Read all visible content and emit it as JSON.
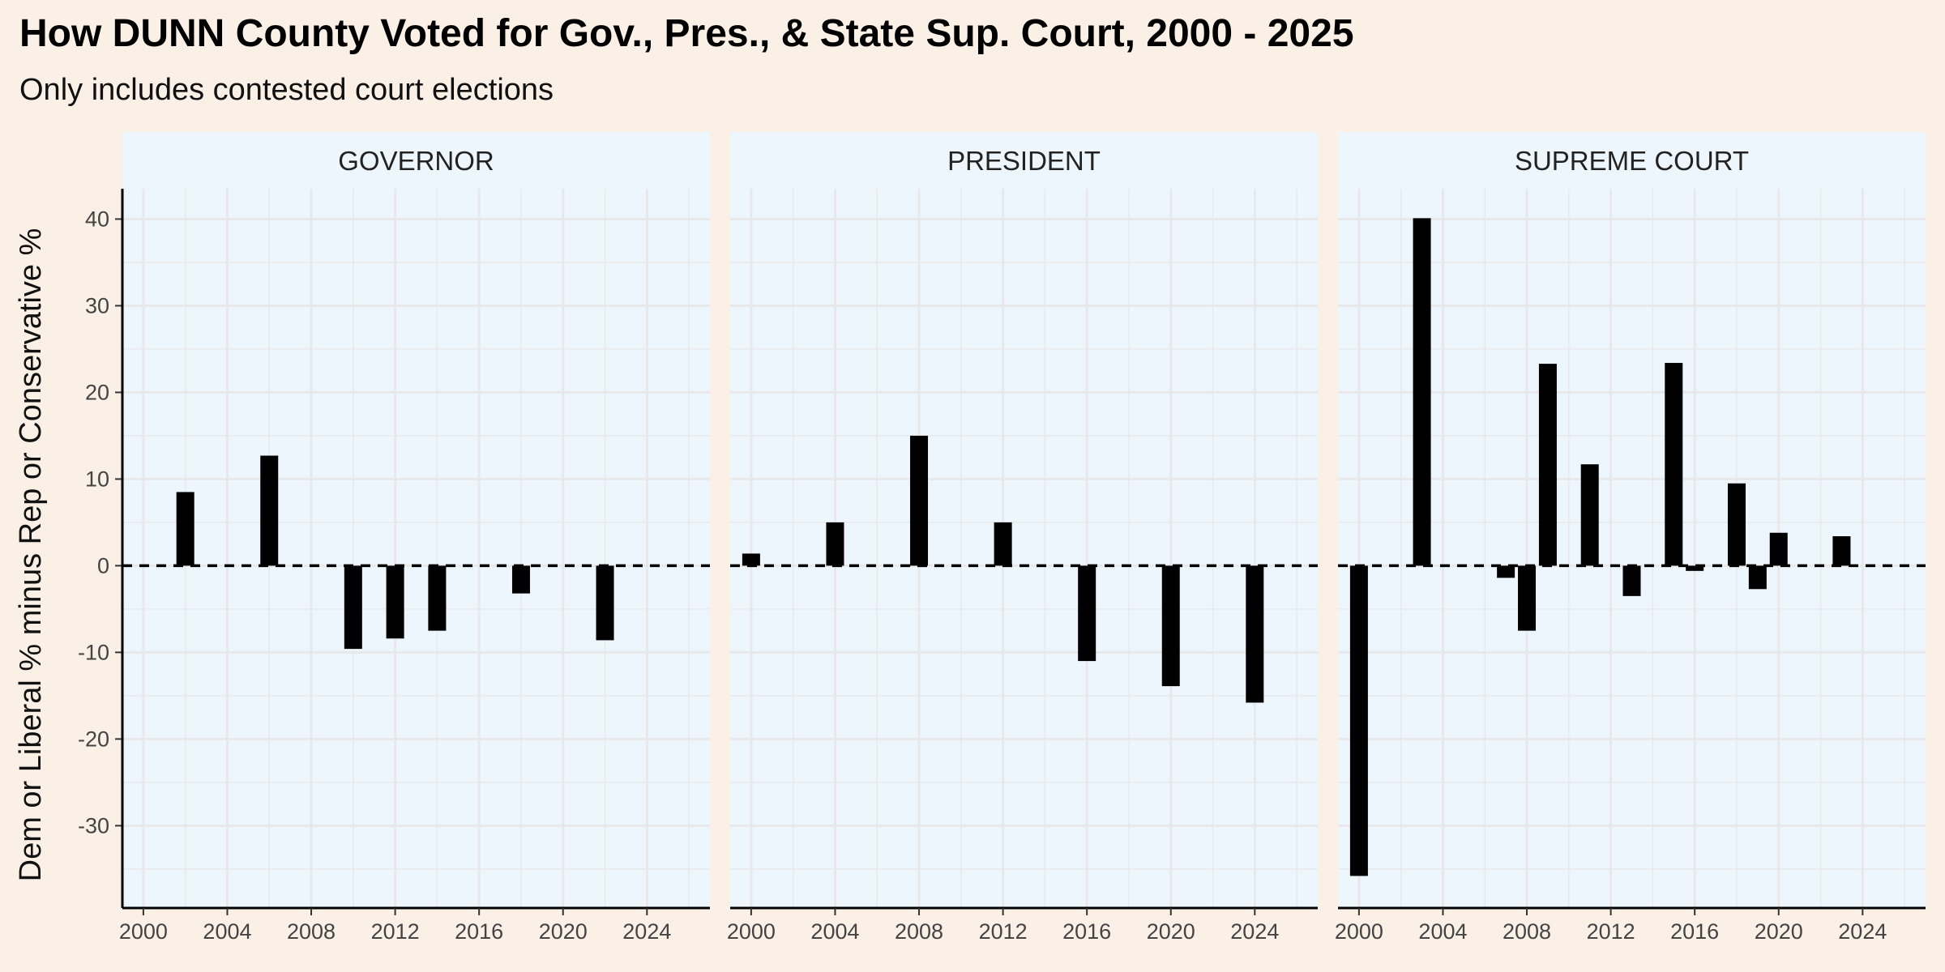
{
  "title": "How DUNN County Voted for Gov., Pres., & State Sup. Court, 2000 - 2025",
  "subtitle": "Only includes contested court elections",
  "colors": {
    "page_background": "#fbf0e6",
    "panel_background": "#eef6fd",
    "strip_background": "#eef6fd",
    "grid": "#e8e8ea",
    "bar": "#000000",
    "zero_line": "#000000"
  },
  "chart_data": {
    "type": "bar",
    "ylabel": "Dem or Liberal % minus Rep or Conservative %",
    "xlabel": "",
    "xlim": [
      1999,
      2027
    ],
    "ylim": [
      -39.5,
      43.5
    ],
    "x_ticks": [
      2000,
      2004,
      2008,
      2012,
      2016,
      2020,
      2024
    ],
    "y_ticks": [
      40,
      30,
      20,
      10,
      0,
      -10,
      -20,
      -30
    ],
    "y_tick_labels": [
      "40",
      "30",
      "20",
      "10",
      "0",
      "-10",
      "-20",
      "-30"
    ],
    "zero_line": "dashed",
    "grid": true,
    "facets": [
      {
        "name": "GOVERNOR",
        "x": [
          2002,
          2006,
          2010,
          2012,
          2014,
          2018,
          2022
        ],
        "values": [
          8.5,
          12.7,
          -9.6,
          -8.4,
          -7.5,
          -3.2,
          -8.6
        ]
      },
      {
        "name": "PRESIDENT",
        "x": [
          2000,
          2004,
          2008,
          2012,
          2016,
          2020,
          2024
        ],
        "values": [
          1.4,
          5.0,
          15.0,
          5.0,
          -11.0,
          -13.9,
          -15.8
        ]
      },
      {
        "name": "SUPREME COURT",
        "x": [
          2000,
          2003,
          2007,
          2008,
          2009,
          2011,
          2013,
          2015,
          2016,
          2018,
          2019,
          2020,
          2023
        ],
        "values": [
          -35.8,
          40.1,
          -1.4,
          -7.5,
          23.3,
          11.7,
          -3.5,
          23.4,
          -0.6,
          9.5,
          -2.7,
          3.8,
          3.4
        ]
      }
    ]
  }
}
